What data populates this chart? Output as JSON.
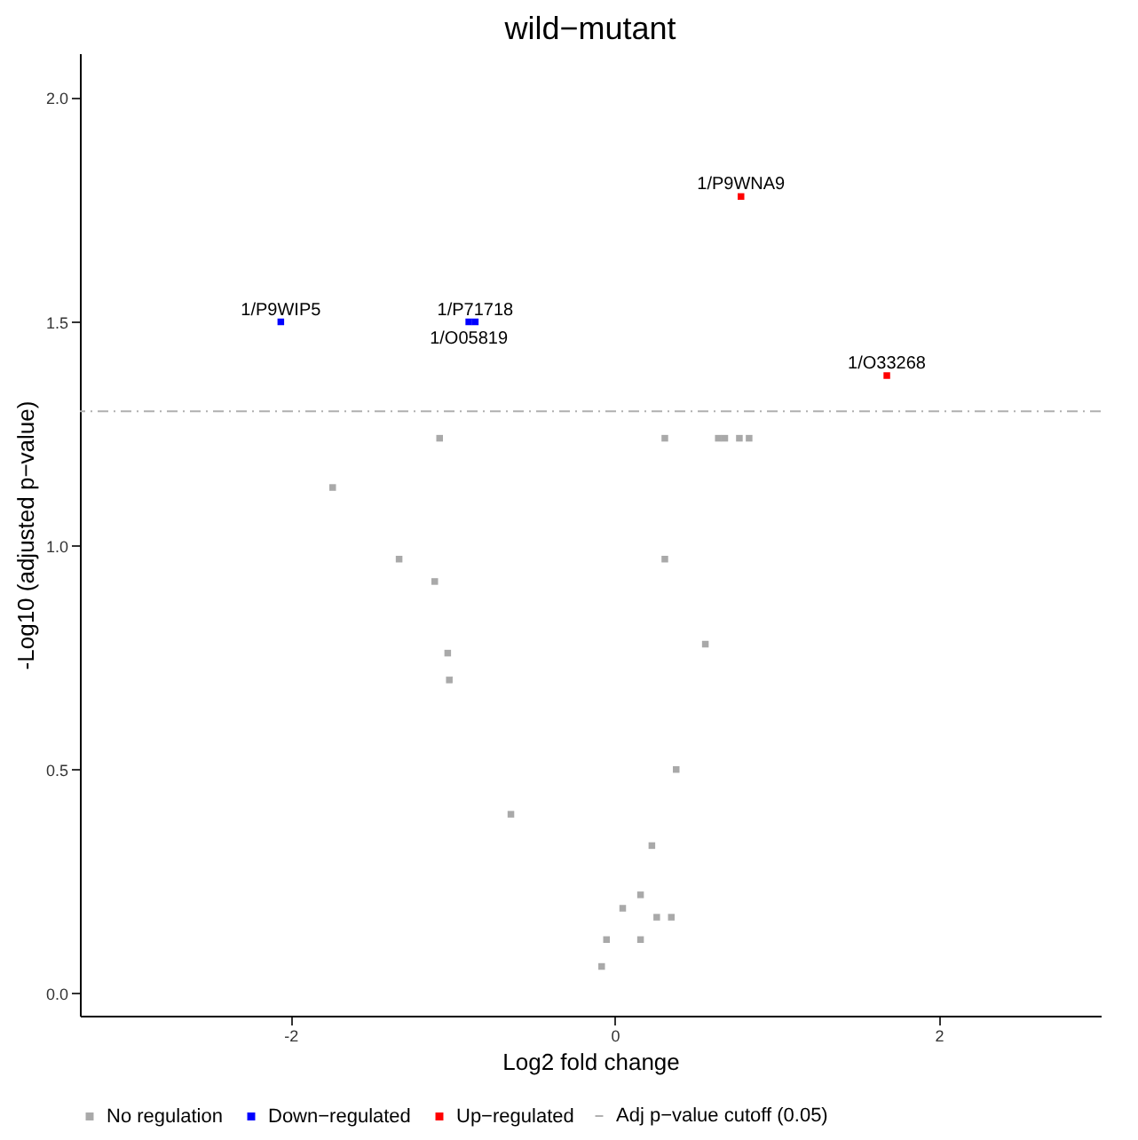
{
  "chart_data": {
    "type": "scatter",
    "title": "wild−mutant",
    "xlabel": "Log2 fold change",
    "ylabel": "-Log10 (adjusted p−value)",
    "xlim": [
      -3.3,
      3.0
    ],
    "ylim": [
      -0.05,
      2.1
    ],
    "xticks": [
      -2,
      0,
      2
    ],
    "yticks": [
      {
        "value": 0,
        "label": "0.0"
      },
      {
        "value": 0.5,
        "label": "0.5"
      },
      {
        "value": 1,
        "label": "1.0"
      },
      {
        "value": 1.5,
        "label": "1.5"
      },
      {
        "value": 2,
        "label": "2.0"
      }
    ],
    "grid": false,
    "legend": "bottom",
    "marker": "square",
    "series": [
      {
        "name": "No regulation",
        "color": "#a9a9a9",
        "x": [
          -1.08,
          0.31,
          0.64,
          0.68,
          0.77,
          0.83,
          -1.74,
          -1.33,
          0.31,
          -1.11,
          0.56,
          -1.03,
          -1.02,
          0.38,
          -0.64,
          0.23,
          0.16,
          0.05,
          0.26,
          0.35,
          -0.05,
          0.16,
          -0.08
        ],
        "values": [
          1.24,
          1.24,
          1.24,
          1.24,
          1.24,
          1.24,
          1.13,
          0.97,
          0.97,
          0.92,
          0.78,
          0.76,
          0.7,
          0.5,
          0.4,
          0.33,
          0.22,
          0.19,
          0.17,
          0.17,
          0.12,
          0.12,
          0.06
        ]
      },
      {
        "name": "Down−regulated",
        "color": "#0000ff",
        "x": [
          -2.06,
          -0.9,
          -0.86
        ],
        "values": [
          1.5,
          1.5,
          1.5
        ]
      },
      {
        "name": "Up−regulated",
        "color": "#ff0000",
        "x": [
          0.78,
          1.68
        ],
        "values": [
          1.78,
          1.38
        ]
      }
    ],
    "ref_lines": [
      {
        "axis": "y",
        "value": 1.3,
        "label": "Adj p−value cutoff (0.05)",
        "color": "#b0b0b0",
        "line_style": "dashed"
      }
    ],
    "annotations": [
      {
        "text": "1/P9WIP5",
        "x": -2.06,
        "y": 1.5
      },
      {
        "text": "1/P71718",
        "x": -0.86,
        "y": 1.5
      },
      {
        "text": "1/O05819",
        "x": -0.9,
        "y": 1.5
      },
      {
        "text": "1/P9WNA9",
        "x": 0.78,
        "y": 1.78
      },
      {
        "text": "1/O33268",
        "x": 1.68,
        "y": 1.38
      }
    ]
  }
}
